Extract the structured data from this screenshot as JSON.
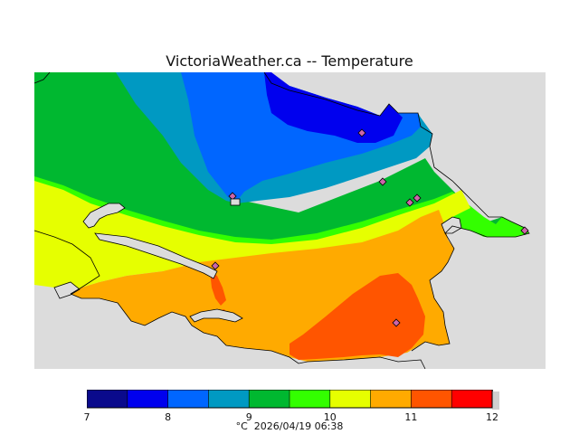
{
  "header": {
    "title": "VictoriaWeather.ca -- Temperature"
  },
  "legend": {
    "ticks": [
      "7",
      "8",
      "9",
      "10",
      "11",
      "12"
    ],
    "colors": [
      "#0a0a8c",
      "#0000ee",
      "#0066ff",
      "#0099c2",
      "#00b830",
      "#33ff00",
      "#e6ff00",
      "#ffaa00",
      "#ff5500",
      "#ff0000"
    ],
    "unit": "°C",
    "timestamp": "2026/04/19 06:38"
  },
  "map": {
    "background_color": "#dcdcdc",
    "stations_count_label": ""
  }
}
